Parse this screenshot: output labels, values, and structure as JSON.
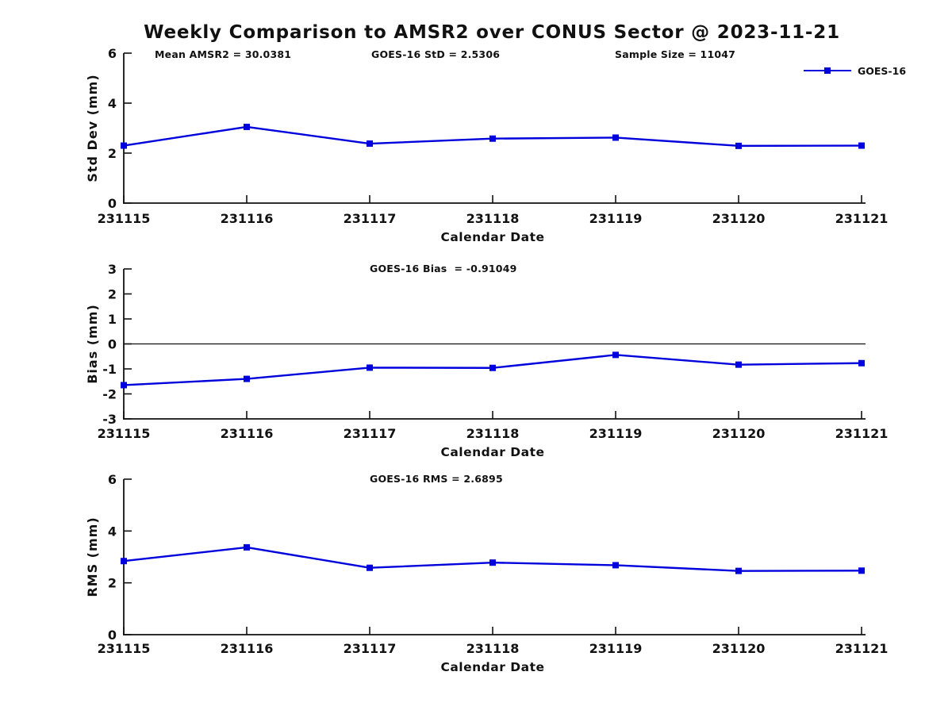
{
  "figure": {
    "title": "Weekly Comparison to AMSR2 over CONUS Sector @ 2023-11-21"
  },
  "chart_data": [
    {
      "type": "line",
      "categories": [
        "231115",
        "231116",
        "231117",
        "231118",
        "231119",
        "231120",
        "231121"
      ],
      "series": [
        {
          "name": "GOES-16",
          "values": [
            2.3,
            3.05,
            2.38,
            2.58,
            2.62,
            2.29,
            2.3
          ]
        }
      ],
      "annotations": [
        "Mean AMSR2 = 30.0381",
        "GOES-16 StD = 2.5306",
        "Sample Size = 11047"
      ],
      "legend": "GOES-16",
      "legend_position": "top-right",
      "xlabel": "Calendar Date",
      "ylabel": "Std Dev (mm)",
      "ylim": [
        0,
        6
      ],
      "yticks": [
        0,
        2,
        4,
        6
      ],
      "grid": false,
      "color": "#0000dd"
    },
    {
      "type": "line",
      "title": "GOES-16 Bias  = -0.91049",
      "categories": [
        "231115",
        "231116",
        "231117",
        "231118",
        "231119",
        "231120",
        "231121"
      ],
      "series": [
        {
          "name": "GOES-16",
          "values": [
            -1.65,
            -1.4,
            -0.95,
            -0.96,
            -0.44,
            -0.83,
            -0.77
          ]
        }
      ],
      "xlabel": "Calendar Date",
      "ylabel": "Bias (mm)",
      "ylim": [
        -3,
        3
      ],
      "yticks": [
        -3,
        -2,
        -1,
        0,
        1,
        2,
        3
      ],
      "zero_line": true,
      "grid": false,
      "color": "#0000dd"
    },
    {
      "type": "line",
      "title": "GOES-16 RMS = 2.6895",
      "categories": [
        "231115",
        "231116",
        "231117",
        "231118",
        "231119",
        "231120",
        "231121"
      ],
      "series": [
        {
          "name": "GOES-16",
          "values": [
            2.84,
            3.37,
            2.58,
            2.78,
            2.68,
            2.46,
            2.47
          ]
        }
      ],
      "xlabel": "Calendar Date",
      "ylabel": "RMS (mm)",
      "ylim": [
        0,
        6
      ],
      "yticks": [
        0,
        2,
        4,
        6
      ],
      "grid": false,
      "color": "#0000dd"
    }
  ],
  "colors": {
    "series": "#0000dd",
    "text": "#111111",
    "background": "#ffffff"
  }
}
